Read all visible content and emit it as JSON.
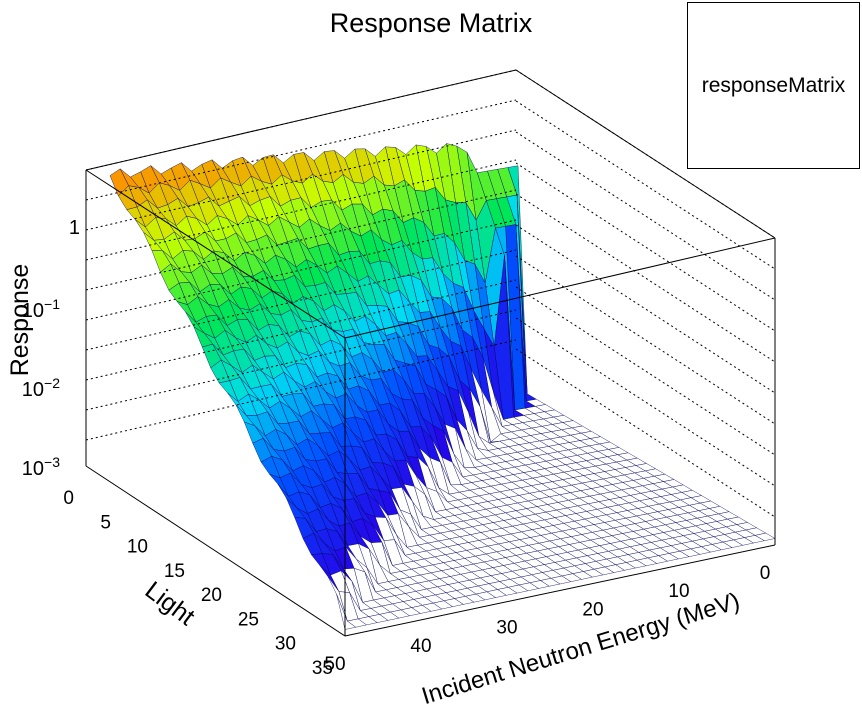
{
  "chart_data": {
    "type": "surface-lego-3d",
    "title": "Response Matrix",
    "legend": {
      "label": "responseMatrix",
      "placement": "top-right"
    },
    "x_axis": {
      "label": "Incident Neutron Energy (MeV)",
      "range": [
        0,
        50
      ],
      "ticks": [
        "0",
        "10",
        "20",
        "30",
        "40",
        "50"
      ]
    },
    "y_axis": {
      "label": "Light",
      "range": [
        0,
        35
      ],
      "ticks": [
        "0",
        "5",
        "10",
        "15",
        "20",
        "25",
        "30",
        "35"
      ]
    },
    "z_axis": {
      "label": "Response",
      "scale": "log",
      "range": [
        0.0005,
        5
      ],
      "tick_values": [
        0.001,
        0.01,
        0.1,
        1
      ]
    },
    "grid": true,
    "colormap": "rainbow",
    "description_series": [
      {
        "light": 0,
        "response_vs_energy_peak": 3.0
      },
      {
        "light": 35,
        "response_vs_energy_peak": 0.001
      }
    ]
  },
  "z_tick_labels": {
    "t3": {
      "base": "10",
      "exp": "−3"
    },
    "t2": {
      "base": "10",
      "exp": "−2"
    },
    "t1": {
      "base": "10",
      "exp": "−1"
    },
    "t0": "1"
  }
}
